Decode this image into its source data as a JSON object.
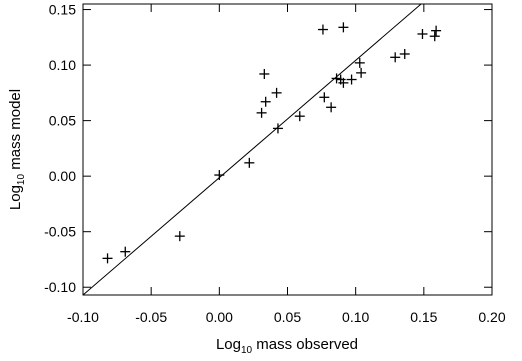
{
  "chart_data": {
    "type": "scatter",
    "title": "",
    "xlabel": {
      "prefix": "Log",
      "sub": "10",
      "suffix": " mass observed"
    },
    "ylabel": {
      "prefix": "Log",
      "sub": "10",
      "suffix": " mass model"
    },
    "xlim": [
      -0.1,
      0.2
    ],
    "ylim": [
      -0.107,
      0.155
    ],
    "xticks": [
      -0.1,
      -0.05,
      0.0,
      0.05,
      0.1,
      0.15,
      0.2
    ],
    "xtick_labels": [
      "-0.10",
      "-0.05",
      "0.00",
      "0.05",
      "0.10",
      "0.15",
      "0.20"
    ],
    "yticks": [
      -0.1,
      -0.05,
      0.0,
      0.05,
      0.1,
      0.15
    ],
    "ytick_labels": [
      "-0.10",
      "-0.05",
      "0.00",
      "0.05",
      "0.10",
      "0.15"
    ],
    "marker": "plus",
    "reference_line": {
      "type": "identity",
      "x": [
        -0.1,
        0.148
      ],
      "y": [
        -0.107,
        0.155
      ]
    },
    "series": [
      {
        "points": [
          {
            "x": -0.082,
            "y": -0.074
          },
          {
            "x": -0.069,
            "y": -0.068
          },
          {
            "x": -0.029,
            "y": -0.054
          },
          {
            "x": 0.0,
            "y": 0.001
          },
          {
            "x": 0.022,
            "y": 0.012
          },
          {
            "x": 0.031,
            "y": 0.057
          },
          {
            "x": 0.033,
            "y": 0.092
          },
          {
            "x": 0.034,
            "y": 0.067
          },
          {
            "x": 0.042,
            "y": 0.075
          },
          {
            "x": 0.043,
            "y": 0.043
          },
          {
            "x": 0.059,
            "y": 0.054
          },
          {
            "x": 0.076,
            "y": 0.132
          },
          {
            "x": 0.077,
            "y": 0.071
          },
          {
            "x": 0.082,
            "y": 0.062
          },
          {
            "x": 0.086,
            "y": 0.088
          },
          {
            "x": 0.089,
            "y": 0.087
          },
          {
            "x": 0.091,
            "y": 0.084
          },
          {
            "x": 0.091,
            "y": 0.134
          },
          {
            "x": 0.097,
            "y": 0.087
          },
          {
            "x": 0.103,
            "y": 0.102
          },
          {
            "x": 0.104,
            "y": 0.093
          },
          {
            "x": 0.129,
            "y": 0.107
          },
          {
            "x": 0.136,
            "y": 0.11
          },
          {
            "x": 0.149,
            "y": 0.128
          },
          {
            "x": 0.158,
            "y": 0.126
          },
          {
            "x": 0.159,
            "y": 0.131
          }
        ]
      }
    ]
  }
}
